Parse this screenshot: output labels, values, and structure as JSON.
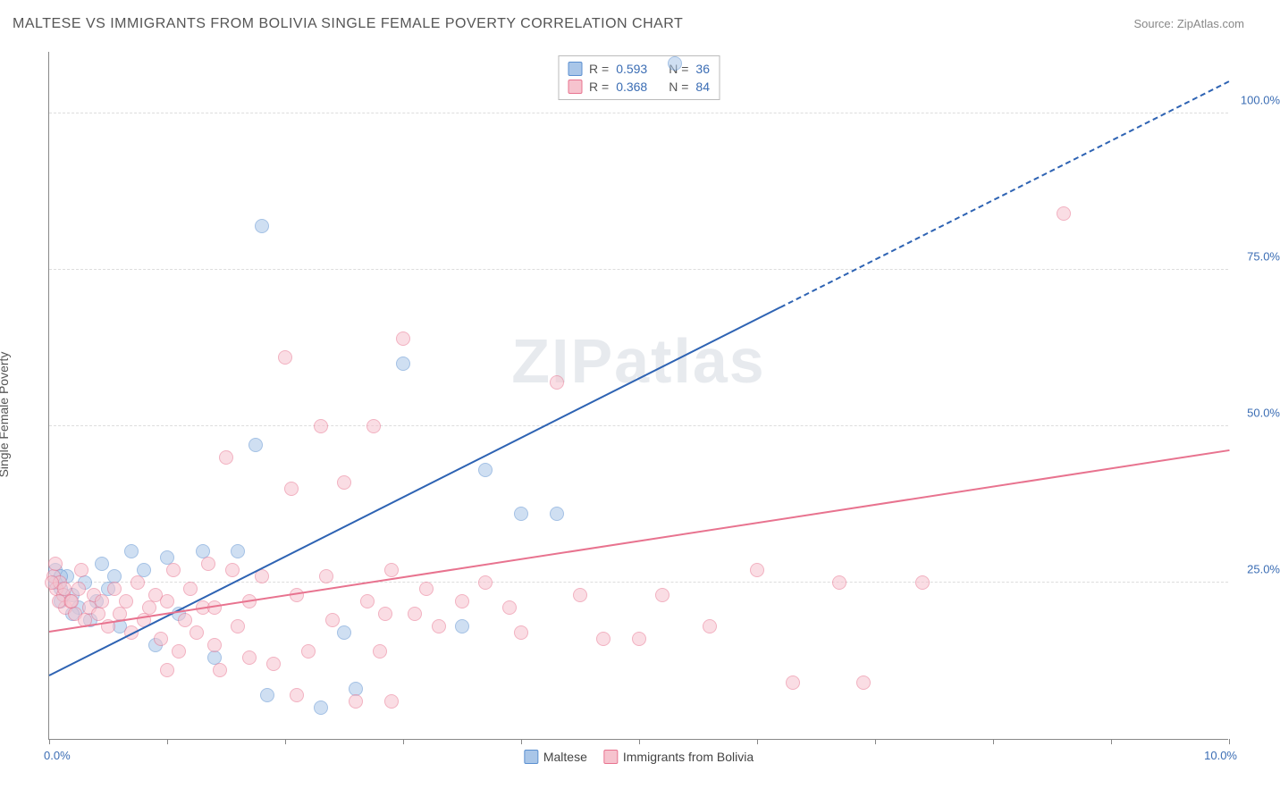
{
  "title": "MALTESE VS IMMIGRANTS FROM BOLIVIA SINGLE FEMALE POVERTY CORRELATION CHART",
  "source": "Source: ZipAtlas.com",
  "watermark": "ZIPatlas",
  "ylabel": "Single Female Poverty",
  "chart": {
    "type": "scatter",
    "background_color": "#ffffff",
    "grid_color": "#dddddd",
    "axis_color": "#888888",
    "xlim": [
      0,
      10
    ],
    "ylim": [
      0,
      110
    ],
    "xticks": [
      0,
      1,
      2,
      3,
      4,
      5,
      6,
      7,
      8,
      9,
      10
    ],
    "x_axis_labels": {
      "left": "0.0%",
      "right": "10.0%"
    },
    "y_gridlines": [
      25,
      50,
      75,
      100
    ],
    "y_axis_labels": [
      "25.0%",
      "50.0%",
      "75.0%",
      "100.0%"
    ],
    "label_color": "#3b6db4",
    "marker_radius": 8,
    "marker_opacity": 0.55,
    "series": [
      {
        "name": "Maltese",
        "color_fill": "#a9c6e8",
        "color_stroke": "#5a8fd0",
        "R": "0.593",
        "N": "36",
        "trend": {
          "x1": 0.0,
          "y1": 10.0,
          "x2": 10.0,
          "y2": 105.0,
          "color": "#2e63b3",
          "width": 2,
          "dash_after_x": 6.2
        },
        "points": [
          [
            0.05,
            25
          ],
          [
            0.05,
            27
          ],
          [
            0.1,
            22
          ],
          [
            0.1,
            24
          ],
          [
            0.15,
            26
          ],
          [
            0.2,
            23
          ],
          [
            0.25,
            21
          ],
          [
            0.3,
            25
          ],
          [
            0.35,
            19
          ],
          [
            0.4,
            22
          ],
          [
            0.45,
            28
          ],
          [
            0.5,
            24
          ],
          [
            0.55,
            26
          ],
          [
            0.7,
            30
          ],
          [
            0.8,
            27
          ],
          [
            0.9,
            15
          ],
          [
            1.0,
            29
          ],
          [
            1.1,
            20
          ],
          [
            1.3,
            30
          ],
          [
            1.4,
            13
          ],
          [
            1.6,
            30
          ],
          [
            1.75,
            47
          ],
          [
            1.8,
            82
          ],
          [
            1.85,
            7
          ],
          [
            2.3,
            5
          ],
          [
            2.5,
            17
          ],
          [
            2.6,
            8
          ],
          [
            3.0,
            60
          ],
          [
            3.5,
            18
          ],
          [
            3.7,
            43
          ],
          [
            4.0,
            36
          ],
          [
            4.3,
            36
          ],
          [
            5.3,
            108
          ],
          [
            0.1,
            26
          ],
          [
            0.2,
            20
          ],
          [
            0.6,
            18
          ]
        ]
      },
      {
        "name": "Immigrants from Bolivia",
        "color_fill": "#f6c3ce",
        "color_stroke": "#e8738f",
        "R": "0.368",
        "N": "84",
        "trend": {
          "x1": 0.0,
          "y1": 17.0,
          "x2": 10.0,
          "y2": 46.0,
          "color": "#e8738f",
          "width": 2,
          "dash_after_x": 10.0
        },
        "points": [
          [
            0.04,
            26
          ],
          [
            0.06,
            24
          ],
          [
            0.09,
            25
          ],
          [
            0.12,
            23
          ],
          [
            0.14,
            21
          ],
          [
            0.18,
            22
          ],
          [
            0.22,
            20
          ],
          [
            0.25,
            24
          ],
          [
            0.27,
            27
          ],
          [
            0.3,
            19
          ],
          [
            0.34,
            21
          ],
          [
            0.38,
            23
          ],
          [
            0.42,
            20
          ],
          [
            0.45,
            22
          ],
          [
            0.5,
            18
          ],
          [
            0.55,
            24
          ],
          [
            0.6,
            20
          ],
          [
            0.65,
            22
          ],
          [
            0.7,
            17
          ],
          [
            0.75,
            25
          ],
          [
            0.8,
            19
          ],
          [
            0.85,
            21
          ],
          [
            0.9,
            23
          ],
          [
            0.95,
            16
          ],
          [
            1.0,
            22
          ],
          [
            1.05,
            27
          ],
          [
            1.1,
            14
          ],
          [
            1.15,
            19
          ],
          [
            1.2,
            24
          ],
          [
            1.25,
            17
          ],
          [
            1.3,
            21
          ],
          [
            1.35,
            28
          ],
          [
            1.4,
            15
          ],
          [
            1.45,
            11
          ],
          [
            1.5,
            45
          ],
          [
            1.55,
            27
          ],
          [
            1.6,
            18
          ],
          [
            1.7,
            22
          ],
          [
            1.8,
            26
          ],
          [
            1.9,
            12
          ],
          [
            2.0,
            61
          ],
          [
            2.05,
            40
          ],
          [
            2.1,
            23
          ],
          [
            2.2,
            14
          ],
          [
            2.3,
            50
          ],
          [
            2.35,
            26
          ],
          [
            2.4,
            19
          ],
          [
            2.5,
            41
          ],
          [
            2.6,
            6
          ],
          [
            2.7,
            22
          ],
          [
            2.75,
            50
          ],
          [
            2.8,
            14
          ],
          [
            2.85,
            20
          ],
          [
            2.9,
            27
          ],
          [
            3.0,
            64
          ],
          [
            3.1,
            20
          ],
          [
            3.2,
            24
          ],
          [
            3.3,
            18
          ],
          [
            3.5,
            22
          ],
          [
            3.7,
            25
          ],
          [
            3.9,
            21
          ],
          [
            4.0,
            17
          ],
          [
            4.3,
            57
          ],
          [
            4.5,
            23
          ],
          [
            4.7,
            16
          ],
          [
            5.0,
            16
          ],
          [
            5.2,
            23
          ],
          [
            5.6,
            18
          ],
          [
            6.0,
            27
          ],
          [
            6.3,
            9
          ],
          [
            6.7,
            25
          ],
          [
            6.9,
            9
          ],
          [
            7.4,
            25
          ],
          [
            8.6,
            84
          ],
          [
            0.02,
            25
          ],
          [
            0.08,
            22
          ],
          [
            0.13,
            24
          ],
          [
            0.19,
            22
          ],
          [
            0.05,
            28
          ],
          [
            1.0,
            11
          ],
          [
            1.7,
            13
          ],
          [
            2.1,
            7
          ],
          [
            2.9,
            6
          ],
          [
            1.4,
            21
          ]
        ]
      }
    ]
  },
  "legend_top": {
    "r_label": "R =",
    "n_label": "N ="
  },
  "legend_bottom": [
    "Maltese",
    "Immigrants from Bolivia"
  ]
}
